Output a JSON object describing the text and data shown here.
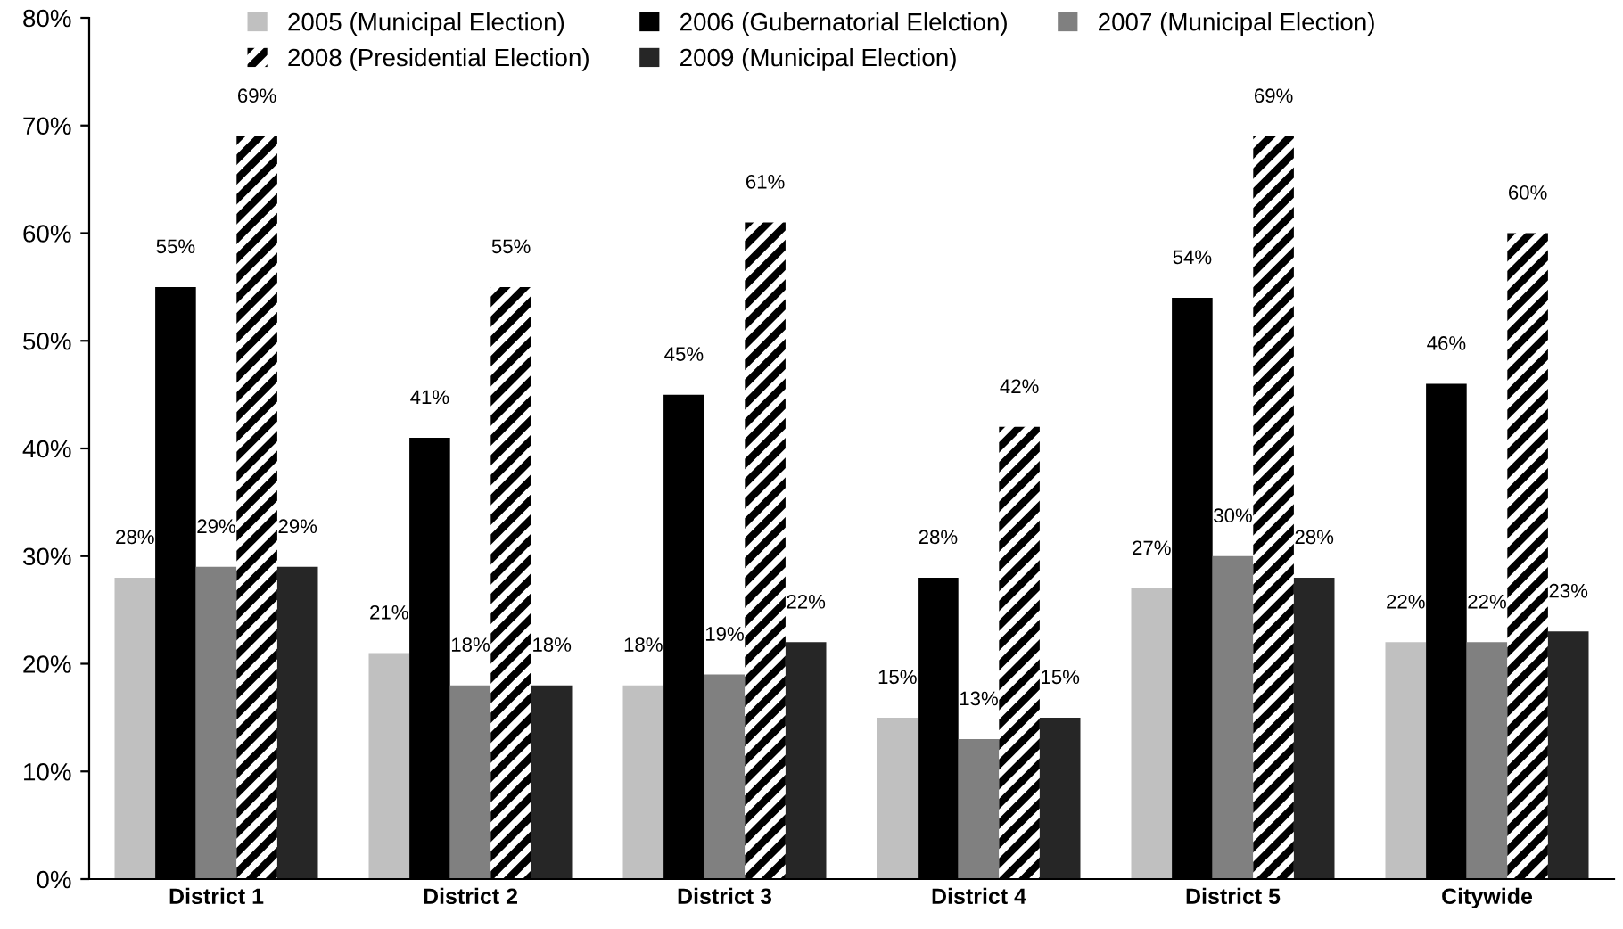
{
  "chart_data": {
    "type": "bar",
    "categories": [
      "District 1",
      "District 2",
      "District 3",
      "District 4",
      "District 5",
      "Citywide"
    ],
    "series": [
      {
        "name": "2005 (Municipal Election)",
        "color": "#c0c0c0",
        "values": [
          28,
          21,
          18,
          15,
          27,
          22
        ],
        "value_labels": [
          "28%",
          "21%",
          "18%",
          "15%",
          "27%",
          "22%"
        ]
      },
      {
        "name": "2006 (Gubernatorial Elelction)",
        "color": "#000000",
        "values": [
          55,
          41,
          45,
          28,
          54,
          46
        ],
        "value_labels": [
          "55%",
          "41%",
          "45%",
          "28%",
          "54%",
          "46%"
        ]
      },
      {
        "name": "2007 (Municipal Election)",
        "color": "#808080",
        "values": [
          29,
          18,
          19,
          13,
          30,
          22
        ],
        "value_labels": [
          "29%",
          "18%",
          "19%",
          "13%",
          "30%",
          "22%"
        ]
      },
      {
        "name": "2008 (Presidential Election)",
        "color": "#ffffff",
        "values": [
          69,
          55,
          61,
          42,
          69,
          60
        ],
        "value_labels": [
          "69%",
          "55%",
          "61%",
          "42%",
          "69%",
          "60%"
        ]
      },
      {
        "name": "2009 (Municipal Election)",
        "color": "#262626",
        "values": [
          29,
          18,
          22,
          15,
          28,
          23
        ],
        "value_labels": [
          "29%",
          "18%",
          "22%",
          "15%",
          "28%",
          "23%"
        ]
      }
    ],
    "ylim": [
      0,
      80
    ],
    "yticks": [
      {
        "value": 0,
        "label": "0%"
      },
      {
        "value": 10,
        "label": "10%"
      },
      {
        "value": 20,
        "label": "20%"
      },
      {
        "value": 30,
        "label": "30%"
      },
      {
        "value": 40,
        "label": "40%"
      },
      {
        "value": 50,
        "label": "50%"
      },
      {
        "value": 60,
        "label": "60%"
      },
      {
        "value": 70,
        "label": "70%"
      },
      {
        "value": 80,
        "label": "80%"
      }
    ],
    "grid": false,
    "legend": "top"
  }
}
